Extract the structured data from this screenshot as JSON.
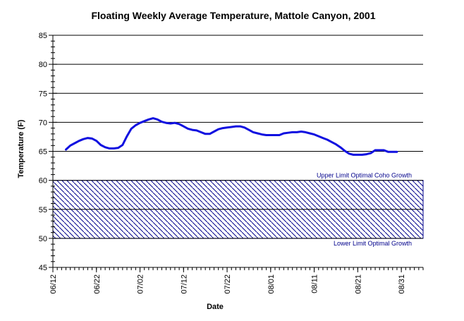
{
  "chart_data": {
    "type": "line",
    "title": "Floating Weekly Average Temperature, Mattole Canyon, 2001",
    "xlabel": "Date",
    "ylabel": "Temperature (F)",
    "x_range": [
      "2001-06-12",
      "2001-09-05"
    ],
    "ylim": [
      45,
      85
    ],
    "y_ticks": [
      45,
      50,
      55,
      60,
      65,
      70,
      75,
      80,
      85
    ],
    "x_ticks": [
      {
        "date": "2001-06-12",
        "label": "06/12"
      },
      {
        "date": "2001-06-22",
        "label": "06/22"
      },
      {
        "date": "2001-07-02",
        "label": "07/02"
      },
      {
        "date": "2001-07-12",
        "label": "07/12"
      },
      {
        "date": "2001-07-22",
        "label": "07/22"
      },
      {
        "date": "2001-08-01",
        "label": "08/01"
      },
      {
        "date": "2001-08-11",
        "label": "08/11"
      },
      {
        "date": "2001-08-21",
        "label": "08/21"
      },
      {
        "date": "2001-08-31",
        "label": "08/31"
      }
    ],
    "grid": "horizontal",
    "line_color": "#1010e0",
    "band_color": "#00008b",
    "series": [
      {
        "x": [
          "2001-06-15",
          "2001-06-16",
          "2001-06-17",
          "2001-06-18",
          "2001-06-19",
          "2001-06-20",
          "2001-06-21",
          "2001-06-22",
          "2001-06-23",
          "2001-06-24",
          "2001-06-25",
          "2001-06-26",
          "2001-06-27",
          "2001-06-28",
          "2001-06-29",
          "2001-06-30",
          "2001-07-01",
          "2001-07-02",
          "2001-07-03",
          "2001-07-04",
          "2001-07-05",
          "2001-07-06",
          "2001-07-07",
          "2001-07-08",
          "2001-07-09",
          "2001-07-10",
          "2001-07-11",
          "2001-07-12",
          "2001-07-13",
          "2001-07-14",
          "2001-07-15",
          "2001-07-16",
          "2001-07-17",
          "2001-07-18",
          "2001-07-19",
          "2001-07-20",
          "2001-07-21",
          "2001-07-22",
          "2001-07-23",
          "2001-07-24",
          "2001-07-25",
          "2001-07-26",
          "2001-07-27",
          "2001-07-28",
          "2001-07-29",
          "2001-07-30",
          "2001-07-31",
          "2001-08-01",
          "2001-08-02",
          "2001-08-03",
          "2001-08-04",
          "2001-08-05",
          "2001-08-06",
          "2001-08-07",
          "2001-08-08",
          "2001-08-09",
          "2001-08-10",
          "2001-08-11",
          "2001-08-12",
          "2001-08-13",
          "2001-08-14",
          "2001-08-15",
          "2001-08-16",
          "2001-08-17",
          "2001-08-18",
          "2001-08-19",
          "2001-08-20",
          "2001-08-21",
          "2001-08-22",
          "2001-08-23",
          "2001-08-24",
          "2001-08-25",
          "2001-08-26",
          "2001-08-27",
          "2001-08-28",
          "2001-08-29",
          "2001-08-30"
        ],
        "values": [
          65.3,
          66.0,
          66.4,
          66.8,
          67.1,
          67.3,
          67.2,
          66.8,
          66.1,
          65.7,
          65.5,
          65.5,
          65.6,
          66.1,
          67.6,
          68.9,
          69.5,
          69.9,
          70.2,
          70.5,
          70.7,
          70.5,
          70.1,
          69.9,
          69.8,
          69.9,
          69.7,
          69.3,
          68.9,
          68.7,
          68.6,
          68.3,
          68.0,
          68.0,
          68.4,
          68.8,
          69.0,
          69.1,
          69.2,
          69.3,
          69.3,
          69.1,
          68.7,
          68.3,
          68.1,
          67.9,
          67.8,
          67.8,
          67.8,
          67.8,
          68.1,
          68.2,
          68.3,
          68.3,
          68.4,
          68.3,
          68.1,
          67.9,
          67.6,
          67.3,
          67.0,
          66.6,
          66.2,
          65.7,
          65.1,
          64.6,
          64.4,
          64.4,
          64.4,
          64.5,
          64.7,
          65.2,
          65.2,
          65.2,
          64.9,
          64.9,
          64.9
        ]
      }
    ],
    "bands": [
      {
        "from": 50,
        "to": 60,
        "pattern": "diagonal-hatch",
        "upper_label": "Upper Limit Optimal Coho Growth",
        "lower_label": "Lower Limit Optimal Growth"
      }
    ]
  }
}
